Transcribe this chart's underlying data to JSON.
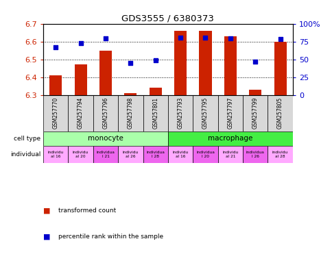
{
  "title": "GDS3555 / 6380373",
  "samples": [
    "GSM257770",
    "GSM257794",
    "GSM257796",
    "GSM257798",
    "GSM257801",
    "GSM257793",
    "GSM257795",
    "GSM257797",
    "GSM257799",
    "GSM257805"
  ],
  "bar_values": [
    6.41,
    6.47,
    6.55,
    6.31,
    6.34,
    6.66,
    6.66,
    6.63,
    6.33,
    6.6
  ],
  "dot_values": [
    67,
    73,
    79,
    45,
    49,
    80,
    80,
    79,
    47,
    78
  ],
  "ylim": [
    6.3,
    6.7
  ],
  "y2lim": [
    0,
    100
  ],
  "yticks": [
    6.3,
    6.4,
    6.5,
    6.6,
    6.7
  ],
  "y2ticks": [
    0,
    25,
    50,
    75,
    100
  ],
  "y2ticklabels": [
    "0",
    "25",
    "50",
    "75",
    "100%"
  ],
  "bar_color": "#cc2200",
  "dot_color": "#0000cc",
  "bar_base": 6.3,
  "cell_type_colors": {
    "monocyte": "#aaffaa",
    "macrophage": "#44ee44"
  },
  "ind_colors": [
    "#ffaaff",
    "#ffaaff",
    "#ee66ee",
    "#ffaaff",
    "#ee66ee",
    "#ffaaff",
    "#ee66ee",
    "#ffaaff",
    "#ee66ee",
    "#ffaaff"
  ],
  "ind_labels": [
    "individu\nal 16",
    "individu\nal 20",
    "individua\nl 21",
    "individu\nal 26",
    "individua\nl 28",
    "individu\nal 16",
    "individua\nl 20",
    "individu\nal 21",
    "individua\nl 26",
    "individu\nal 28"
  ],
  "legend_bar_color": "#cc2200",
  "legend_dot_color": "#0000cc",
  "legend_bar_label": "transformed count",
  "legend_dot_label": "percentile rank within the sample",
  "ylabel_color": "#cc2200",
  "y2label_color": "#0000cc"
}
